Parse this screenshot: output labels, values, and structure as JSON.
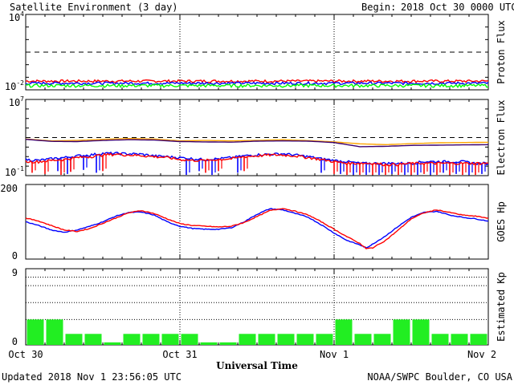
{
  "header": {
    "title": "Satellite Environment (3 day)",
    "begin_label": "Begin:",
    "begin_value": "2018 Oct 30 0000 UTC"
  },
  "footer": {
    "updated": "Updated 2018 Nov  1 23:56:05 UTC",
    "credit": "NOAA/SWPC Boulder, CO USA",
    "xlabel": "Universal Time"
  },
  "x_ticks": [
    "Oct 30",
    "Oct 31",
    "Nov 1",
    "Nov 2"
  ],
  "colors": {
    "red": "#ff0000",
    "blue": "#0000ff",
    "green": "#00ff00",
    "orange": "#ffa500",
    "purple": "#3b006f",
    "kp_bar": "#22ee22"
  },
  "chart_data": [
    {
      "panel": "proton",
      "type": "line",
      "ylabel": "Proton Flux",
      "yscale": "log",
      "ylim": [
        0.01,
        10000
      ],
      "xlim": [
        0,
        72
      ],
      "ytick_labels": [
        {
          "base": "10",
          "exp": "4"
        },
        {
          "base": "10",
          "exp": "-2"
        }
      ],
      "threshold_dashed": 10,
      "series": [
        {
          "color": "#ff0000",
          "level": 0.05,
          "noise": 0.012
        },
        {
          "color": "#0000ff",
          "level": 0.034,
          "noise": 0.008
        },
        {
          "color": "#00ff00",
          "level": 0.022,
          "noise": 0.006
        }
      ]
    },
    {
      "panel": "electron",
      "type": "line",
      "ylabel": "Electron Flux",
      "yscale": "log",
      "ylim": [
        0.1,
        10000000
      ],
      "xlim": [
        0,
        72
      ],
      "ytick_labels": [
        {
          "base": "10",
          "exp": "7"
        },
        {
          "base": "10",
          "exp": "-1"
        }
      ],
      "threshold_dashed": 1000,
      "series": [
        {
          "color": "#ffa500",
          "points": [
            [
              0,
              700
            ],
            [
              4,
              450
            ],
            [
              8,
              500
            ],
            [
              12,
              650
            ],
            [
              16,
              800
            ],
            [
              20,
              700
            ],
            [
              24,
              450
            ],
            [
              28,
              500
            ],
            [
              32,
              450
            ],
            [
              36,
              500
            ],
            [
              40,
              600
            ],
            [
              44,
              480
            ],
            [
              48,
              350
            ],
            [
              52,
              220
            ],
            [
              56,
              180
            ],
            [
              60,
              230
            ],
            [
              64,
              280
            ],
            [
              68,
              300
            ],
            [
              72,
              320
            ]
          ]
        },
        {
          "color": "#3b006f",
          "points": [
            [
              0,
              650
            ],
            [
              4,
              400
            ],
            [
              8,
              380
            ],
            [
              12,
              500
            ],
            [
              16,
              600
            ],
            [
              20,
              550
            ],
            [
              24,
              380
            ],
            [
              28,
              350
            ],
            [
              32,
              330
            ],
            [
              36,
              420
            ],
            [
              40,
              450
            ],
            [
              44,
              420
            ],
            [
              48,
              300
            ],
            [
              52,
              110
            ],
            [
              56,
              120
            ],
            [
              60,
              150
            ],
            [
              64,
              160
            ],
            [
              68,
              170
            ],
            [
              72,
              180
            ]
          ]
        },
        {
          "color": "#0000ff",
          "points": [
            [
              0,
              5
            ],
            [
              2,
              4
            ],
            [
              4,
              6
            ],
            [
              6,
              8
            ],
            [
              8,
              12
            ],
            [
              10,
              15
            ],
            [
              12,
              22
            ],
            [
              14,
              22
            ],
            [
              16,
              20
            ],
            [
              18,
              18
            ],
            [
              20,
              12
            ],
            [
              22,
              10
            ],
            [
              24,
              8
            ],
            [
              26,
              6
            ],
            [
              28,
              5
            ],
            [
              30,
              6
            ],
            [
              32,
              8
            ],
            [
              34,
              12
            ],
            [
              36,
              16
            ],
            [
              38,
              18
            ],
            [
              40,
              20
            ],
            [
              42,
              15
            ],
            [
              44,
              10
            ],
            [
              46,
              6
            ],
            [
              48,
              4
            ],
            [
              50,
              3
            ],
            [
              52,
              2
            ],
            [
              54,
              2
            ],
            [
              56,
              2
            ],
            [
              58,
              2
            ],
            [
              60,
              2
            ],
            [
              62,
              3
            ],
            [
              64,
              3
            ],
            [
              66,
              3
            ],
            [
              68,
              3
            ],
            [
              70,
              2
            ],
            [
              72,
              2
            ]
          ],
          "dips": [
            [
              5,
              0.3
            ],
            [
              6.5,
              0.15
            ],
            [
              9,
              0.4
            ],
            [
              11,
              0.2
            ],
            [
              25,
              0.12
            ],
            [
              27,
              0.3
            ],
            [
              29,
              0.12
            ],
            [
              33,
              0.2
            ],
            [
              46,
              0.2
            ],
            [
              49,
              0.15
            ],
            [
              51,
              0.12
            ],
            [
              53,
              0.12
            ],
            [
              55,
              0.12
            ],
            [
              57,
              0.15
            ],
            [
              59,
              0.12
            ],
            [
              61,
              0.12
            ],
            [
              63,
              0.12
            ],
            [
              65,
              0.2
            ],
            [
              67,
              0.15
            ],
            [
              69,
              0.12
            ],
            [
              71,
              0.15
            ]
          ]
        },
        {
          "color": "#ff0000",
          "points": [
            [
              0,
              3
            ],
            [
              2,
              3
            ],
            [
              4,
              4
            ],
            [
              6,
              5
            ],
            [
              8,
              8
            ],
            [
              10,
              10
            ],
            [
              12,
              15
            ],
            [
              14,
              18
            ],
            [
              16,
              15
            ],
            [
              18,
              13
            ],
            [
              20,
              10
            ],
            [
              22,
              8
            ],
            [
              24,
              5
            ],
            [
              26,
              4
            ],
            [
              28,
              4
            ],
            [
              30,
              5
            ],
            [
              32,
              6
            ],
            [
              34,
              10
            ],
            [
              36,
              12
            ],
            [
              38,
              15
            ],
            [
              40,
              15
            ],
            [
              42,
              12
            ],
            [
              44,
              8
            ],
            [
              46,
              5
            ],
            [
              48,
              3
            ],
            [
              50,
              2
            ],
            [
              52,
              2
            ],
            [
              54,
              2
            ],
            [
              56,
              1.5
            ],
            [
              58,
              1.5
            ],
            [
              60,
              2
            ],
            [
              62,
              2
            ],
            [
              64,
              2
            ],
            [
              66,
              2
            ],
            [
              68,
              2
            ],
            [
              70,
              2
            ],
            [
              72,
              2
            ]
          ],
          "dips": [
            [
              1,
              0.2
            ],
            [
              3,
              0.15
            ],
            [
              5.5,
              0.12
            ],
            [
              7,
              0.25
            ],
            [
              12,
              0.3
            ],
            [
              28,
              0.2
            ],
            [
              30,
              0.3
            ],
            [
              34,
              0.3
            ],
            [
              48,
              0.15
            ],
            [
              50,
              0.12
            ],
            [
              52,
              0.12
            ],
            [
              54,
              0.12
            ],
            [
              56,
              0.12
            ],
            [
              58,
              0.12
            ],
            [
              60,
              0.12
            ],
            [
              62,
              0.15
            ],
            [
              64,
              0.12
            ],
            [
              66,
              0.12
            ],
            [
              68,
              0.12
            ],
            [
              70,
              0.12
            ]
          ]
        }
      ]
    },
    {
      "panel": "hp",
      "type": "line",
      "ylabel": "GOES Hp",
      "yscale": "linear",
      "ylim": [
        0,
        200
      ],
      "xlim": [
        0,
        72
      ],
      "yticks": [
        0,
        200
      ],
      "series": [
        {
          "color": "#0000ff",
          "points": [
            [
              0,
              100
            ],
            [
              2,
              90
            ],
            [
              4,
              78
            ],
            [
              6,
              72
            ],
            [
              8,
              78
            ],
            [
              10,
              88
            ],
            [
              12,
              100
            ],
            [
              14,
              115
            ],
            [
              16,
              125
            ],
            [
              18,
              126
            ],
            [
              20,
              118
            ],
            [
              22,
              100
            ],
            [
              24,
              88
            ],
            [
              26,
              82
            ],
            [
              28,
              80
            ],
            [
              30,
              80
            ],
            [
              32,
              84
            ],
            [
              34,
              100
            ],
            [
              36,
              120
            ],
            [
              38,
              135
            ],
            [
              40,
              132
            ],
            [
              42,
              122
            ],
            [
              44,
              112
            ],
            [
              46,
              92
            ],
            [
              48,
              70
            ],
            [
              50,
              50
            ],
            [
              52,
              38
            ],
            [
              53,
              30
            ],
            [
              54,
              40
            ],
            [
              56,
              62
            ],
            [
              58,
              88
            ],
            [
              60,
              112
            ],
            [
              62,
              125
            ],
            [
              64,
              128
            ],
            [
              66,
              118
            ],
            [
              68,
              112
            ],
            [
              70,
              108
            ],
            [
              72,
              102
            ]
          ]
        },
        {
          "color": "#ff0000",
          "points": [
            [
              0,
              110
            ],
            [
              2,
              102
            ],
            [
              4,
              90
            ],
            [
              6,
              78
            ],
            [
              8,
              74
            ],
            [
              10,
              82
            ],
            [
              12,
              96
            ],
            [
              14,
              110
            ],
            [
              16,
              124
            ],
            [
              18,
              130
            ],
            [
              20,
              122
            ],
            [
              22,
              108
            ],
            [
              24,
              95
            ],
            [
              26,
              90
            ],
            [
              28,
              88
            ],
            [
              30,
              86
            ],
            [
              32,
              88
            ],
            [
              34,
              98
            ],
            [
              36,
              114
            ],
            [
              38,
              130
            ],
            [
              40,
              136
            ],
            [
              42,
              128
            ],
            [
              44,
              118
            ],
            [
              46,
              100
            ],
            [
              48,
              80
            ],
            [
              50,
              60
            ],
            [
              52,
              42
            ],
            [
              53,
              28
            ],
            [
              54,
              30
            ],
            [
              56,
              50
            ],
            [
              58,
              78
            ],
            [
              60,
              108
            ],
            [
              62,
              124
            ],
            [
              64,
              132
            ],
            [
              66,
              125
            ],
            [
              68,
              118
            ],
            [
              70,
              115
            ],
            [
              72,
              110
            ]
          ]
        }
      ]
    },
    {
      "panel": "kp",
      "type": "bar",
      "ylabel": "Estimated Kp",
      "yscale": "linear",
      "ylim": [
        0,
        9
      ],
      "xlim": [
        0,
        72
      ],
      "yticks": [
        0,
        9
      ],
      "dotted_levels": [
        3,
        5,
        7,
        8
      ],
      "bar_width_hours": 3,
      "values": [
        3,
        3,
        1.3,
        1.3,
        0.3,
        1.3,
        1.3,
        1.3,
        1.3,
        0.3,
        0.3,
        1.3,
        1.3,
        1.3,
        1.3,
        1.3,
        3,
        1.3,
        1.3,
        3,
        3,
        1.3,
        1.3,
        1.3
      ]
    }
  ]
}
